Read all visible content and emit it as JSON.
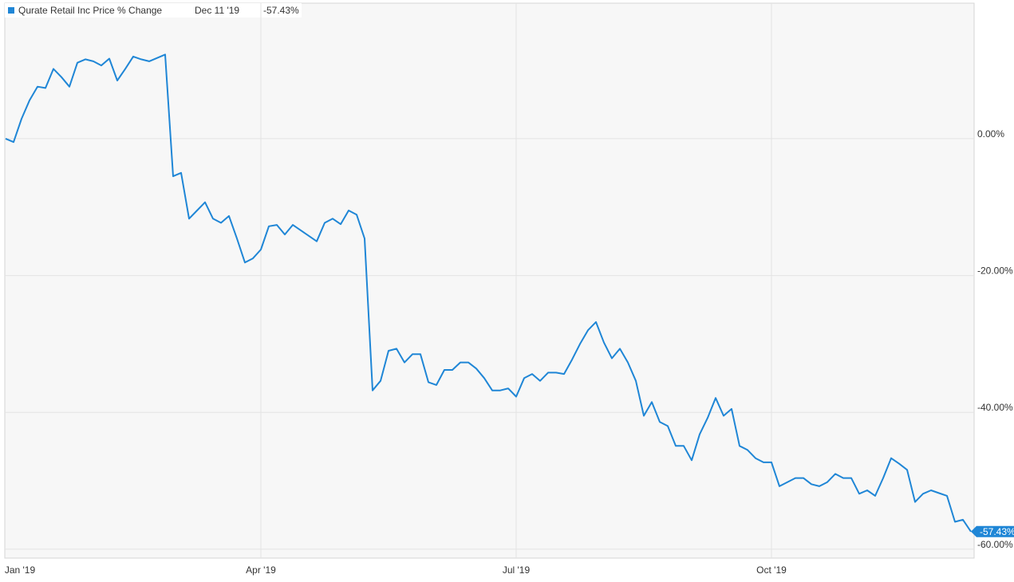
{
  "chart_data": {
    "type": "line",
    "legend_label": "Qurate Retail Inc Price % Change",
    "legend_date": "Dec 11 '19",
    "end_label": "-57.43%",
    "categories": [
      "Jan '19",
      null,
      null,
      null,
      null,
      null,
      null,
      null,
      null,
      null,
      null,
      null,
      null,
      null,
      null,
      null,
      null,
      null,
      null,
      null,
      null,
      null,
      null,
      null,
      null,
      null,
      null,
      null,
      null,
      null,
      null,
      null,
      "Apr '19",
      null,
      null,
      null,
      null,
      null,
      null,
      null,
      null,
      null,
      null,
      null,
      null,
      null,
      null,
      null,
      null,
      null,
      null,
      null,
      null,
      null,
      null,
      null,
      null,
      null,
      null,
      null,
      null,
      null,
      null,
      null,
      "Jul '19",
      null,
      null,
      null,
      null,
      null,
      null,
      null,
      null,
      null,
      null,
      null,
      null,
      null,
      null,
      null,
      null,
      null,
      null,
      null,
      null,
      null,
      null,
      null,
      null,
      null,
      null,
      null,
      null,
      null,
      null,
      null,
      "Oct '19",
      null,
      null,
      null,
      null,
      null,
      null,
      null,
      null,
      null,
      null,
      null,
      null,
      null,
      null,
      null,
      null,
      null,
      null,
      null,
      null,
      null,
      null,
      null,
      null,
      null
    ],
    "series": [
      {
        "name": "Qurate Retail Inc Price % Change",
        "color": "#1f86d6",
        "values": [
          0,
          -0.5,
          2.9,
          5.6,
          7.6,
          7.4,
          10.2,
          9.0,
          7.6,
          11.1,
          11.6,
          11.3,
          10.7,
          11.7,
          8.5,
          10.2,
          12.0,
          11.6,
          11.3,
          11.8,
          12.3,
          -5.5,
          -5.0,
          -11.7,
          -10.5,
          -9.3,
          -11.7,
          -12.3,
          -11.3,
          -14.6,
          -18.1,
          -17.5,
          -16.2,
          -12.8,
          -12.6,
          -14.0,
          -12.6,
          -13.4,
          -14.2,
          -15.0,
          -12.3,
          -11.7,
          -12.5,
          -10.5,
          -11.1,
          -14.6,
          -36.8,
          -35.4,
          -31.0,
          -30.7,
          -32.7,
          -31.5,
          -31.5,
          -35.6,
          -36.0,
          -33.8,
          -33.8,
          -32.7,
          -32.7,
          -33.6,
          -35.0,
          -36.8,
          -36.8,
          -36.5,
          -37.7,
          -35.0,
          -34.4,
          -35.4,
          -34.2,
          -34.2,
          -34.4,
          -32.3,
          -30.0,
          -28.0,
          -26.8,
          -29.8,
          -32.1,
          -30.7,
          -32.7,
          -35.4,
          -40.5,
          -38.5,
          -41.4,
          -42.0,
          -44.9,
          -44.9,
          -47.0,
          -43.2,
          -40.8,
          -37.9,
          -40.5,
          -39.5,
          -44.9,
          -45.5,
          -46.7,
          -47.3,
          -47.3,
          -50.8,
          -50.2,
          -49.6,
          -49.6,
          -50.5,
          -50.8,
          -50.2,
          -49.0,
          -49.6,
          -49.6,
          -51.9,
          -51.4,
          -52.2,
          -49.6,
          -46.7,
          -47.5,
          -48.4,
          -53.1,
          -51.9,
          -51.4,
          -51.8,
          -52.2,
          -56.0,
          -55.7,
          -57.43
        ]
      }
    ],
    "ylim": [
      -61.3,
      19.8
    ],
    "yticks": [
      {
        "value": 0,
        "label": "0.00%"
      },
      {
        "value": -20,
        "label": "-20.00%"
      },
      {
        "value": -40,
        "label": "-40.00%"
      },
      {
        "value": -60,
        "label": "-60.00%"
      }
    ],
    "grid": true
  }
}
